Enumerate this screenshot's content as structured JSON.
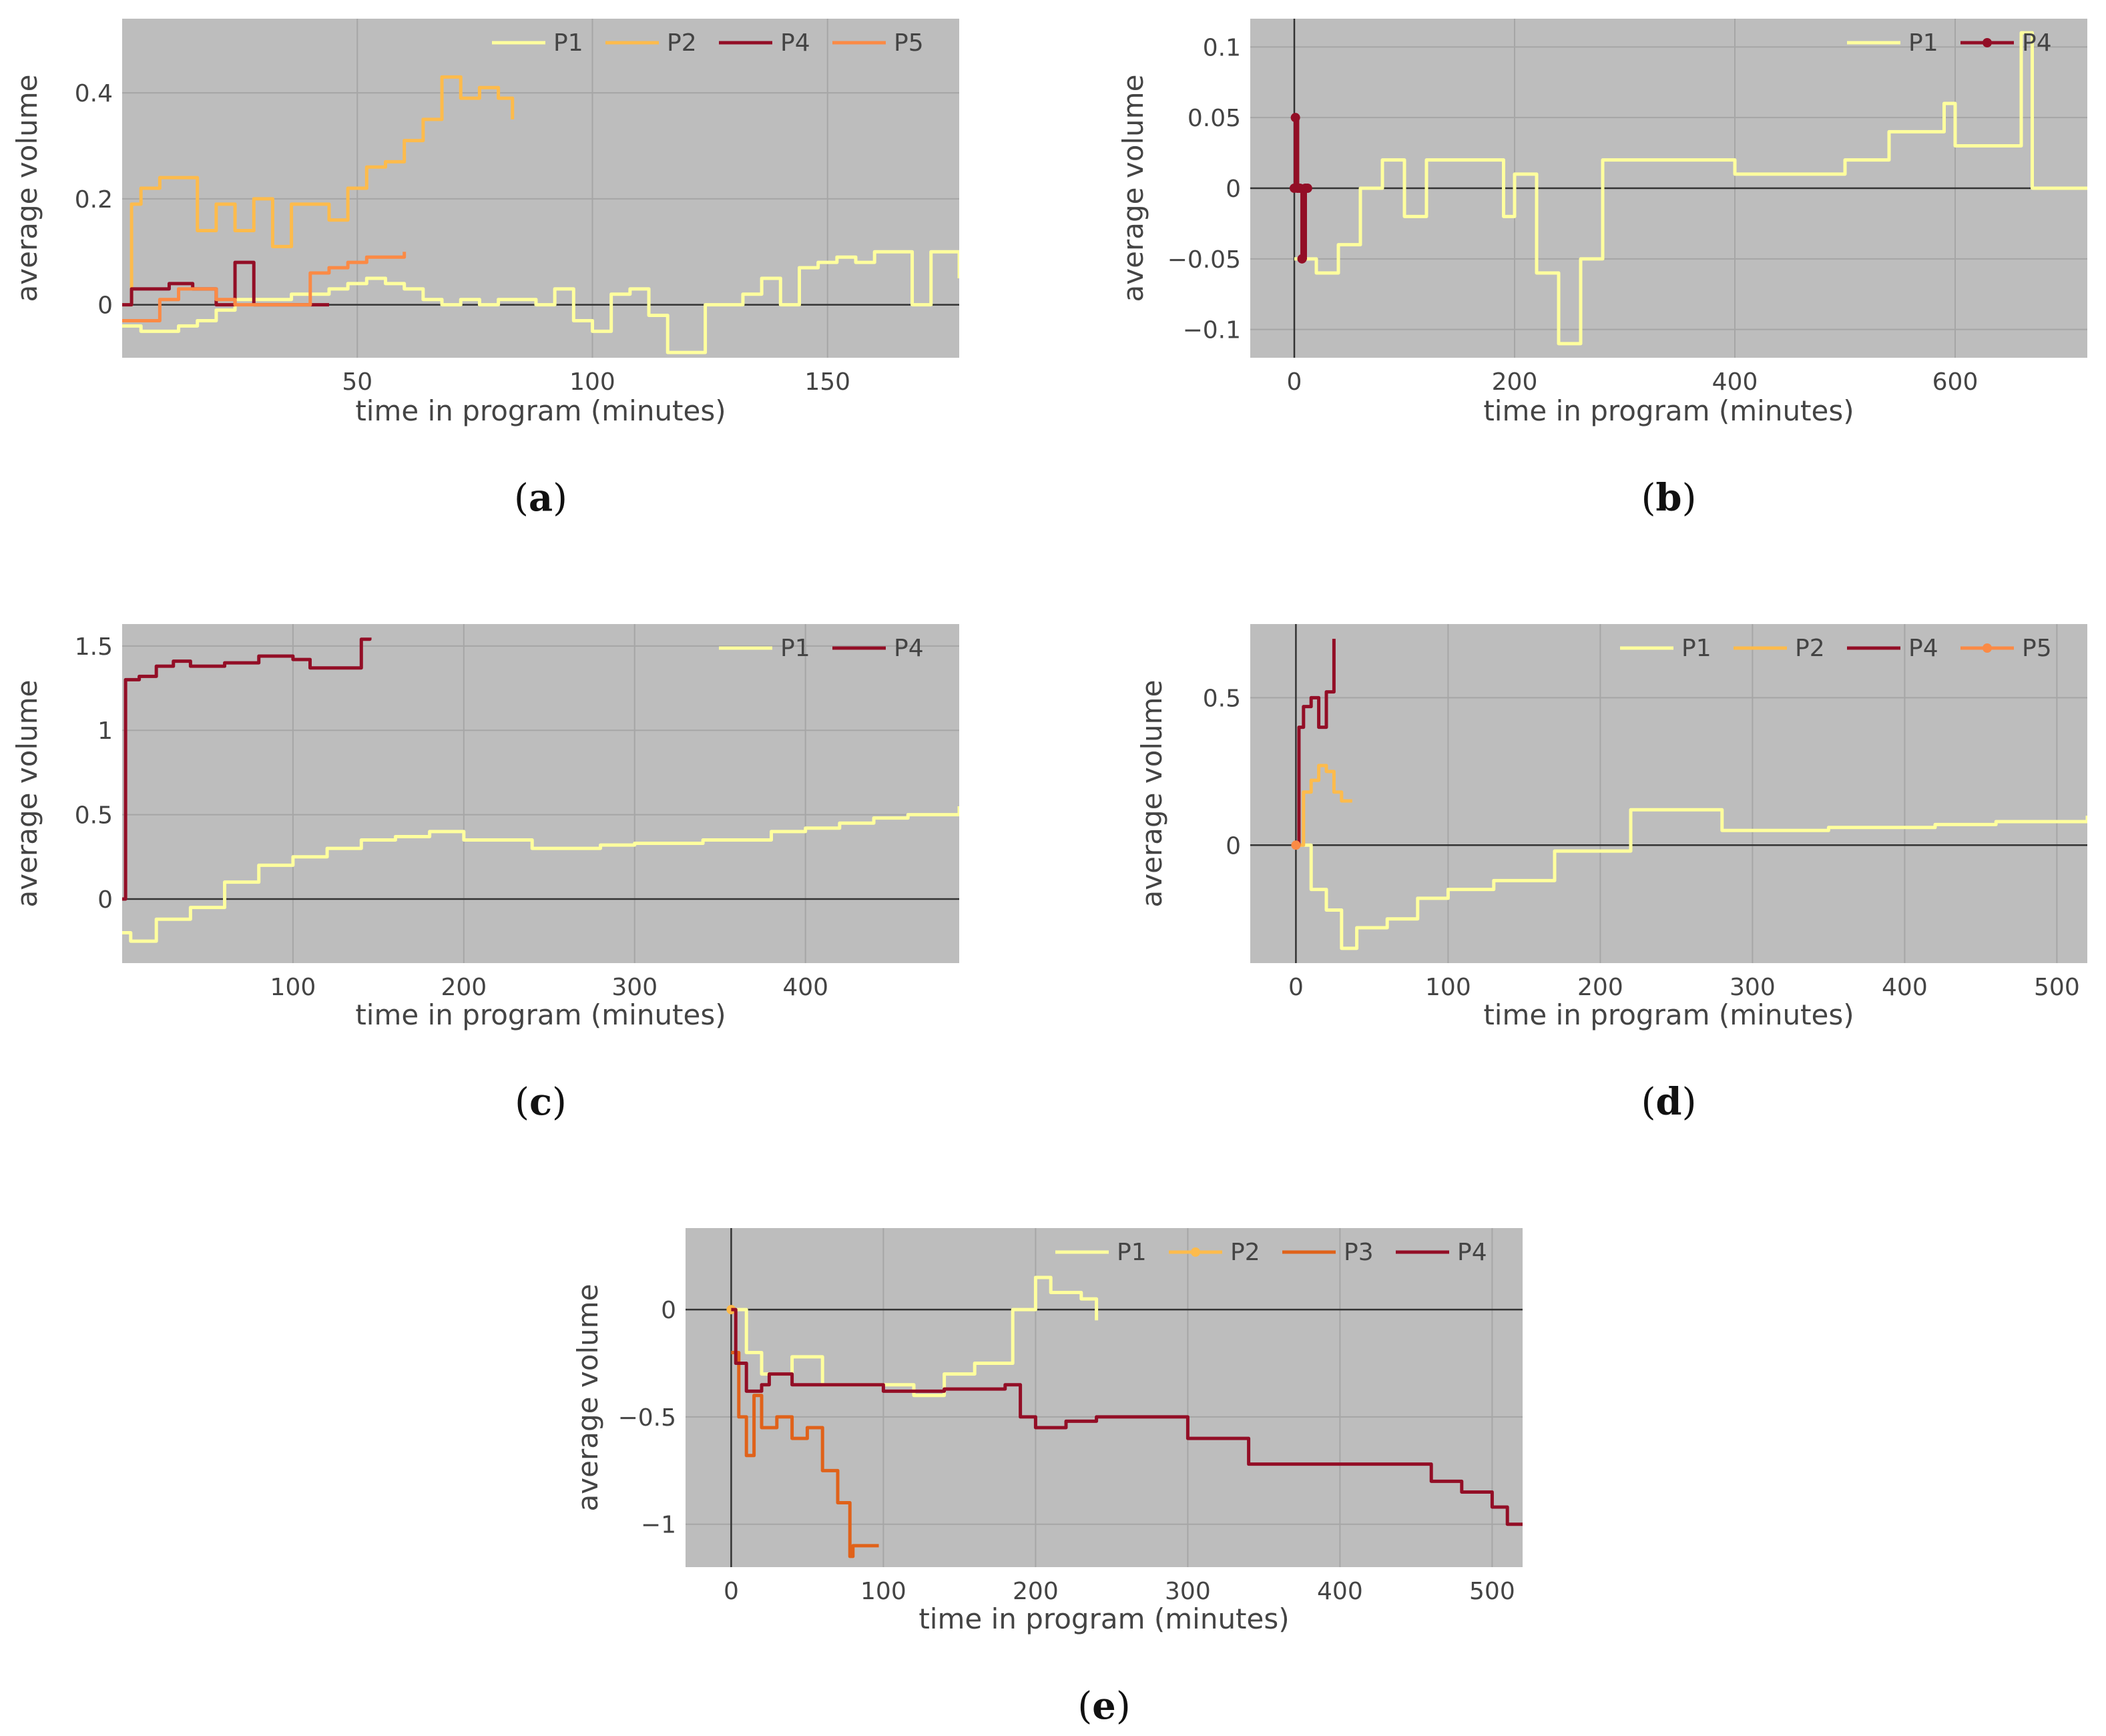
{
  "colors": {
    "background": "#bdbdbd",
    "grid": "#a6a6a6",
    "zero_line": "#333333",
    "tick_text": "#444444",
    "P1": "#ffff9e",
    "P2": "#fdbb4c",
    "P3": "#e0621a",
    "P4": "#930e26",
    "P5": "#fb8a45"
  },
  "chart_data": [
    {
      "caption": "(a)",
      "caption_letter": "a",
      "type": "line",
      "xlabel": "time in program (minutes)",
      "ylabel": "average volume",
      "xlim": [
        0,
        178
      ],
      "ylim": [
        -0.1,
        0.54
      ],
      "xticks": [
        50,
        100,
        150
      ],
      "yticks": [
        0,
        0.2,
        0.4
      ],
      "zero_h": true,
      "zero_v": false,
      "legend": "top-right",
      "series": [
        {
          "name": "P1",
          "color_key": "P1",
          "markers": false,
          "x": [
            0,
            4,
            8,
            12,
            16,
            20,
            24,
            28,
            32,
            36,
            40,
            44,
            48,
            52,
            56,
            60,
            64,
            68,
            72,
            76,
            80,
            84,
            88,
            92,
            96,
            100,
            104,
            108,
            112,
            116,
            120,
            124,
            128,
            132,
            136,
            140,
            144,
            148,
            152,
            156,
            160,
            164,
            168,
            172,
            178
          ],
          "y": [
            -0.04,
            -0.05,
            -0.05,
            -0.04,
            -0.03,
            -0.01,
            0.01,
            0.01,
            0.01,
            0.02,
            0.02,
            0.03,
            0.04,
            0.05,
            0.04,
            0.03,
            0.01,
            0.0,
            0.01,
            0.0,
            0.01,
            0.01,
            0.0,
            0.03,
            -0.03,
            -0.05,
            0.02,
            0.03,
            -0.02,
            -0.09,
            -0.09,
            0.0,
            0.0,
            0.02,
            0.05,
            0.0,
            0.07,
            0.08,
            0.09,
            0.08,
            0.1,
            0.1,
            0.0,
            0.1,
            0.05
          ]
        },
        {
          "name": "P2",
          "color_key": "P2",
          "markers": false,
          "x": [
            0,
            2,
            4,
            8,
            12,
            16,
            20,
            24,
            28,
            32,
            36,
            40,
            44,
            48,
            52,
            56,
            60,
            64,
            68,
            72,
            76,
            80,
            83
          ],
          "y": [
            0.0,
            0.19,
            0.22,
            0.24,
            0.24,
            0.14,
            0.19,
            0.14,
            0.2,
            0.11,
            0.19,
            0.19,
            0.16,
            0.22,
            0.26,
            0.27,
            0.31,
            0.35,
            0.43,
            0.39,
            0.41,
            0.39,
            0.35
          ]
        },
        {
          "name": "P4",
          "color_key": "P4",
          "markers": false,
          "x": [
            0,
            2,
            6,
            10,
            15,
            20,
            24,
            28,
            32,
            40,
            44
          ],
          "y": [
            0.0,
            0.03,
            0.03,
            0.04,
            0.03,
            0.0,
            0.08,
            0.0,
            0.0,
            0.0,
            0.0
          ]
        },
        {
          "name": "P5",
          "color_key": "P5",
          "markers": false,
          "x": [
            0,
            4,
            8,
            12,
            16,
            20,
            24,
            30,
            36,
            40,
            44,
            48,
            52,
            56,
            60
          ],
          "y": [
            -0.03,
            -0.03,
            0.01,
            0.03,
            0.03,
            0.01,
            0.0,
            0.0,
            0.0,
            0.06,
            0.07,
            0.08,
            0.09,
            0.09,
            0.1
          ]
        }
      ]
    },
    {
      "caption": "(b)",
      "caption_letter": "b",
      "type": "line",
      "xlabel": "time in program (minutes)",
      "ylabel": "average volume",
      "xlim": [
        -40,
        720
      ],
      "ylim": [
        -0.12,
        0.12
      ],
      "xticks": [
        0,
        200,
        400,
        600
      ],
      "yticks": [
        -0.1,
        -0.05,
        0,
        0.05,
        0.1
      ],
      "zero_h": true,
      "zero_v": true,
      "legend": "top-right",
      "series": [
        {
          "name": "P1",
          "color_key": "P1",
          "markers": false,
          "x": [
            0,
            20,
            40,
            60,
            80,
            100,
            120,
            150,
            190,
            200,
            220,
            240,
            260,
            280,
            320,
            360,
            400,
            450,
            500,
            540,
            560,
            590,
            600,
            640,
            660,
            670,
            720
          ],
          "y": [
            -0.05,
            -0.06,
            -0.04,
            0.0,
            0.02,
            -0.02,
            0.02,
            0.02,
            -0.02,
            0.01,
            -0.06,
            -0.11,
            -0.05,
            0.02,
            0.02,
            0.02,
            0.01,
            0.01,
            0.02,
            0.04,
            0.04,
            0.06,
            0.03,
            0.03,
            0.11,
            0.0,
            0.0
          ]
        },
        {
          "name": "P4",
          "color_key": "P4",
          "markers": true,
          "x": [
            0,
            1,
            3,
            5,
            7,
            10,
            12
          ],
          "y": [
            0.0,
            0.05,
            0.0,
            0.0,
            -0.05,
            0.0,
            0.0
          ]
        }
      ]
    },
    {
      "caption": "(c)",
      "caption_letter": "c",
      "type": "line",
      "xlabel": "time in program (minutes)",
      "ylabel": "average volume",
      "xlim": [
        0,
        490
      ],
      "ylim": [
        -0.38,
        1.63
      ],
      "xticks": [
        100,
        200,
        300,
        400
      ],
      "yticks": [
        0,
        0.5,
        1,
        1.5
      ],
      "zero_h": true,
      "zero_v": false,
      "legend": "top-right",
      "series": [
        {
          "name": "P1",
          "color_key": "P1",
          "markers": false,
          "x": [
            0,
            5,
            20,
            40,
            60,
            80,
            100,
            120,
            140,
            160,
            180,
            200,
            220,
            240,
            260,
            280,
            300,
            340,
            380,
            400,
            420,
            440,
            460,
            490
          ],
          "y": [
            -0.2,
            -0.25,
            -0.12,
            -0.05,
            0.1,
            0.2,
            0.25,
            0.3,
            0.35,
            0.37,
            0.4,
            0.35,
            0.35,
            0.3,
            0.3,
            0.32,
            0.33,
            0.35,
            0.4,
            0.42,
            0.45,
            0.48,
            0.5,
            0.55
          ]
        },
        {
          "name": "P4",
          "color_key": "P4",
          "markers": false,
          "x": [
            0,
            2,
            10,
            20,
            30,
            40,
            60,
            80,
            100,
            110,
            130,
            140,
            145
          ],
          "y": [
            0.0,
            1.3,
            1.32,
            1.38,
            1.41,
            1.38,
            1.4,
            1.44,
            1.42,
            1.37,
            1.37,
            1.54,
            1.55
          ]
        }
      ]
    },
    {
      "caption": "(d)",
      "caption_letter": "d",
      "type": "line",
      "xlabel": "time in program (minutes)",
      "ylabel": "average volume",
      "xlim": [
        -30,
        520
      ],
      "ylim": [
        -0.4,
        0.75
      ],
      "xticks": [
        0,
        100,
        200,
        300,
        400,
        500
      ],
      "yticks": [
        0,
        0.5
      ],
      "zero_h": true,
      "zero_v": true,
      "legend": "top-right",
      "series": [
        {
          "name": "P1",
          "color_key": "P1",
          "markers": false,
          "x": [
            0,
            10,
            20,
            30,
            40,
            60,
            80,
            100,
            130,
            170,
            200,
            220,
            240,
            280,
            300,
            350,
            400,
            420,
            460,
            520
          ],
          "y": [
            0.0,
            -0.15,
            -0.22,
            -0.35,
            -0.28,
            -0.25,
            -0.18,
            -0.15,
            -0.12,
            -0.02,
            -0.02,
            0.12,
            0.12,
            0.05,
            0.05,
            0.06,
            0.06,
            0.07,
            0.08,
            0.1
          ]
        },
        {
          "name": "P2",
          "color_key": "P2",
          "markers": false,
          "x": [
            0,
            5,
            10,
            15,
            20,
            25,
            30,
            37
          ],
          "y": [
            0.0,
            0.18,
            0.22,
            0.27,
            0.25,
            0.18,
            0.15,
            0.15
          ]
        },
        {
          "name": "P4",
          "color_key": "P4",
          "markers": false,
          "x": [
            0,
            2,
            5,
            10,
            15,
            20,
            25
          ],
          "y": [
            0.0,
            0.4,
            0.47,
            0.5,
            0.4,
            0.52,
            0.7
          ]
        },
        {
          "name": "P5",
          "color_key": "P5",
          "markers": true,
          "x": [
            0
          ],
          "y": [
            0.0
          ]
        }
      ]
    },
    {
      "caption": "(e)",
      "caption_letter": "e",
      "type": "line",
      "xlabel": "time in program (minutes)",
      "ylabel": "average volume",
      "xlim": [
        -30,
        520
      ],
      "ylim": [
        -1.2,
        0.38
      ],
      "xticks": [
        0,
        100,
        200,
        300,
        400,
        500
      ],
      "yticks": [
        -1,
        -0.5,
        0
      ],
      "zero_h": true,
      "zero_v": true,
      "legend": "top-right",
      "series": [
        {
          "name": "P1",
          "color_key": "P1",
          "markers": false,
          "x": [
            0,
            10,
            20,
            40,
            60,
            80,
            100,
            120,
            140,
            160,
            175,
            185,
            200,
            210,
            230,
            240
          ],
          "y": [
            0.0,
            -0.2,
            -0.3,
            -0.22,
            -0.35,
            -0.35,
            -0.35,
            -0.4,
            -0.3,
            -0.25,
            -0.25,
            0.0,
            0.15,
            0.08,
            0.05,
            -0.05
          ]
        },
        {
          "name": "P2",
          "color_key": "P2",
          "markers": true,
          "x": [
            0
          ],
          "y": [
            0.0
          ]
        },
        {
          "name": "P3",
          "color_key": "P3",
          "markers": false,
          "x": [
            0,
            5,
            10,
            15,
            20,
            30,
            40,
            50,
            60,
            70,
            78,
            80,
            85,
            97
          ],
          "y": [
            -0.2,
            -0.5,
            -0.68,
            -0.4,
            -0.55,
            -0.5,
            -0.6,
            -0.55,
            -0.75,
            -0.9,
            -1.15,
            -1.1,
            -1.1,
            -1.1
          ]
        },
        {
          "name": "P4",
          "color_key": "P4",
          "markers": false,
          "x": [
            0,
            3,
            10,
            20,
            25,
            40,
            80,
            100,
            140,
            180,
            190,
            200,
            220,
            240,
            260,
            300,
            340,
            400,
            460,
            480,
            500,
            510,
            520
          ],
          "y": [
            0.0,
            -0.25,
            -0.38,
            -0.35,
            -0.3,
            -0.35,
            -0.35,
            -0.38,
            -0.37,
            -0.35,
            -0.5,
            -0.55,
            -0.52,
            -0.5,
            -0.5,
            -0.6,
            -0.72,
            -0.72,
            -0.8,
            -0.85,
            -0.92,
            -1.0,
            -1.0
          ]
        }
      ]
    }
  ]
}
